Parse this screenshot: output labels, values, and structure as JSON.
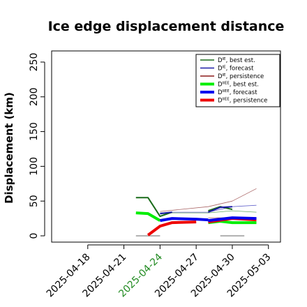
{
  "chart_data": {
    "type": "line",
    "title": "Ice edge displacement distance",
    "xlabel": "",
    "ylabel": "Displacement (km)",
    "ylim": [
      0,
      260
    ],
    "xlim": [
      "2025-04-15",
      "2025-05-04"
    ],
    "yticks": [
      0,
      50,
      100,
      150,
      200,
      250
    ],
    "xticks": [
      "2025-04-18",
      "2025-04-21",
      "2025-04-24",
      "2025-04-27",
      "2025-04-30",
      "2025-05-03"
    ],
    "highlight_xtick": "2025-04-24",
    "highlight_color": "#228b22",
    "grid": false,
    "legend_position": "top-right",
    "legend": [
      {
        "prefix": "D",
        "sup": "IE",
        "suffix": ", best est.",
        "color": "#1a6b1a",
        "width": 1.5
      },
      {
        "prefix": "D",
        "sup": "IE",
        "suffix": ", forecast",
        "color": "#1a1aa6",
        "width": 1.5
      },
      {
        "prefix": "D",
        "sup": "IE",
        "suffix": ", persistence",
        "color": "#8b1a1a",
        "width": 1.5
      },
      {
        "prefix": "D",
        "sup": "IIEE",
        "suffix": ", best est.",
        "color": "#00ee00",
        "width": 4
      },
      {
        "prefix": "D",
        "sup": "IIEE",
        "suffix": ", forecast",
        "color": "#0000ee",
        "width": 4
      },
      {
        "prefix": "D",
        "sup": "IIEE",
        "suffix": ", persistence",
        "color": "#ee0000",
        "width": 4
      }
    ],
    "series": [
      {
        "key": "gray_a",
        "color": "#999999",
        "width": 1.5,
        "points": [
          [
            "2025-04-22",
            0
          ],
          [
            "2025-04-24",
            0
          ]
        ]
      },
      {
        "key": "gray_b",
        "color": "#999999",
        "width": 1.5,
        "points": [
          [
            "2025-04-29",
            0
          ],
          [
            "2025-05-01",
            0
          ]
        ]
      },
      {
        "key": "thin_blue_a",
        "color": "#6666cc",
        "width": 0.8,
        "points": [
          [
            "2025-04-24",
            33
          ],
          [
            "2025-04-25",
            34
          ],
          [
            "2025-04-27",
            34
          ],
          [
            "2025-04-28",
            34
          ],
          [
            "2025-04-30",
            42
          ],
          [
            "2025-05-02",
            44
          ]
        ]
      },
      {
        "key": "thin_green_a",
        "color": "#66aa66",
        "width": 0.8,
        "points": [
          [
            "2025-04-24",
            31
          ],
          [
            "2025-04-25",
            33
          ],
          [
            "2025-04-27",
            33
          ],
          [
            "2025-04-28",
            33
          ],
          [
            "2025-04-30",
            36
          ],
          [
            "2025-05-02",
            34
          ]
        ]
      },
      {
        "key": "thin_red_a",
        "color": "#aa6666",
        "width": 0.8,
        "points": [
          [
            "2025-04-24",
            35
          ],
          [
            "2025-04-28",
            42
          ],
          [
            "2025-04-30",
            50
          ],
          [
            "2025-05-02",
            68
          ]
        ]
      },
      {
        "key": "thin_red_b",
        "color": "#aa6666",
        "width": 0.8,
        "points": [
          [
            "2025-04-28",
            26
          ],
          [
            "2025-04-30",
            26
          ],
          [
            "2025-05-02",
            26
          ]
        ]
      },
      {
        "key": "green_thick_b",
        "color": "#00ee00",
        "width": 4,
        "points": [
          [
            "2025-04-28",
            19
          ],
          [
            "2025-04-29",
            21
          ],
          [
            "2025-04-30",
            19
          ],
          [
            "2025-05-02",
            19
          ]
        ]
      },
      {
        "key": "red_thick_b",
        "color": "#ee0000",
        "width": 4,
        "points": [
          [
            "2025-04-28",
            20
          ],
          [
            "2025-04-30",
            25
          ],
          [
            "2025-05-02",
            23
          ]
        ]
      },
      {
        "key": "blue_thick_b",
        "color": "#0000ee",
        "width": 4,
        "points": [
          [
            "2025-04-28",
            22
          ],
          [
            "2025-04-29",
            24
          ],
          [
            "2025-04-30",
            26
          ],
          [
            "2025-05-02",
            25
          ]
        ]
      },
      {
        "key": "green_thick_a",
        "color": "#00ee00",
        "width": 4,
        "points": [
          [
            "2025-04-22",
            33
          ],
          [
            "2025-04-23",
            32
          ],
          [
            "2025-04-24",
            22
          ]
        ]
      },
      {
        "key": "red_thick_a",
        "color": "#ee0000",
        "width": 4,
        "points": [
          [
            "2025-04-23",
            1
          ],
          [
            "2025-04-24",
            14
          ],
          [
            "2025-04-25",
            19
          ],
          [
            "2025-04-27",
            20
          ]
        ]
      },
      {
        "key": "blue_thick_a",
        "color": "#0000ee",
        "width": 4,
        "points": [
          [
            "2025-04-24",
            22
          ],
          [
            "2025-04-25",
            25
          ],
          [
            "2025-04-27",
            24
          ],
          [
            "2025-04-28",
            23
          ]
        ]
      },
      {
        "key": "dark_green_a",
        "color": "#1a6b1a",
        "width": 2,
        "points": [
          [
            "2025-04-22",
            55
          ],
          [
            "2025-04-23",
            55
          ],
          [
            "2025-04-24",
            28
          ],
          [
            "2025-04-25",
            34
          ]
        ]
      },
      {
        "key": "dark_green_b",
        "color": "#1a6b1a",
        "width": 2,
        "points": [
          [
            "2025-04-28",
            36
          ],
          [
            "2025-04-29",
            42
          ],
          [
            "2025-04-30",
            38
          ]
        ]
      },
      {
        "key": "dark_blue_a",
        "color": "#1a1aa6",
        "width": 2,
        "points": [
          [
            "2025-04-24",
            32
          ],
          [
            "2025-04-25",
            34
          ]
        ]
      },
      {
        "key": "dark_blue_b",
        "color": "#1a1aa6",
        "width": 2,
        "points": [
          [
            "2025-04-28",
            34
          ],
          [
            "2025-04-29",
            41
          ],
          [
            "2025-04-30",
            42
          ]
        ]
      }
    ]
  }
}
